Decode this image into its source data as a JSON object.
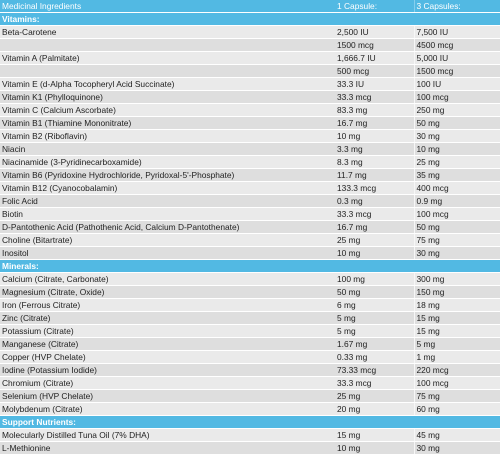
{
  "header": {
    "col0": "Medicinal Ingredients",
    "col1": "1 Capsule:",
    "col2": "3 Capsules:"
  },
  "sections": [
    {
      "title": "Vitamins:",
      "rows": [
        [
          "Beta-Carotene",
          "2,500 IU",
          "7,500 IU"
        ],
        [
          "",
          "1500 mcg",
          "4500 mcg"
        ],
        [
          "Vitamin A (Palmitate)",
          "1,666.7 IU",
          "5,000 IU"
        ],
        [
          "",
          "500 mcg",
          "1500 mcg"
        ],
        [
          "Vitamin E (d-Alpha Tocopheryl Acid Succinate)",
          "33.3 IU",
          "100 IU"
        ],
        [
          "Vitamin K1 (Phylloquinone)",
          "33.3 mcg",
          "100 mcg"
        ],
        [
          "Vitamin C (Calcium Ascorbate)",
          "83.3 mg",
          "250 mg"
        ],
        [
          "Vitamin B1 (Thiamine Mononitrate)",
          "16.7 mg",
          "50 mg"
        ],
        [
          "Vitamin B2 (Riboflavin)",
          "10 mg",
          "30 mg"
        ],
        [
          "Niacin",
          "3.3 mg",
          "10 mg"
        ],
        [
          "Niacinamide (3-Pyridinecarboxamide)",
          "8.3 mg",
          "25 mg"
        ],
        [
          "Vitamin B6 (Pyridoxine Hydrochloride, Pyridoxal-5'-Phosphate)",
          "11.7 mg",
          "35 mg"
        ],
        [
          "Vitamin B12 (Cyanocobalamin)",
          "133.3 mcg",
          "400 mcg"
        ],
        [
          "Folic Acid",
          "0.3 mg",
          "0.9 mg"
        ],
        [
          "Biotin",
          "33.3 mcg",
          "100 mcg"
        ],
        [
          "D-Pantothenic Acid (Pathothenic Acid, Calcium D-Pantothenate)",
          "16.7 mg",
          "50 mg"
        ],
        [
          "Choline (Bitartrate)",
          "25 mg",
          "75 mg"
        ],
        [
          "Inositol",
          "10 mg",
          "30 mg"
        ]
      ]
    },
    {
      "title": "Minerals:",
      "rows": [
        [
          "Calcium (Citrate, Carbonate)",
          "100 mg",
          "300 mg"
        ],
        [
          "Magnesium (Citrate, Oxide)",
          "50 mg",
          "150 mg"
        ],
        [
          "Iron (Ferrous Citrate)",
          "6 mg",
          "18 mg"
        ],
        [
          "Zinc (Citrate)",
          "5 mg",
          "15 mg"
        ],
        [
          "Potassium (Citrate)",
          "5 mg",
          "15 mg"
        ],
        [
          "Manganese (Citrate)",
          "1.67 mg",
          "5 mg"
        ],
        [
          "Copper (HVP Chelate)",
          "0.33 mg",
          "1 mg"
        ],
        [
          "Iodine (Potassium Iodide)",
          "73.33 mcg",
          "220 mcg"
        ],
        [
          "Chromium (Citrate)",
          "33.3 mcg",
          "100 mcg"
        ],
        [
          "Selenium (HVP Chelate)",
          "25 mg",
          "75 mg"
        ],
        [
          "Molybdenum (Citrate)",
          "20 mg",
          "60 mg"
        ]
      ]
    },
    {
      "title": "Support Nutrients:",
      "rows": [
        [
          "Molecularly Distilled Tuna Oil (7% DHA)",
          "15 mg",
          "45 mg"
        ],
        [
          "L-Methionine",
          "10 mg",
          "30 mg"
        ]
      ]
    }
  ],
  "colors": {
    "header_bg": "#52b9e3",
    "row_bg": "#eaeaea",
    "row_alt_bg": "#dedede",
    "text": "#222222"
  }
}
